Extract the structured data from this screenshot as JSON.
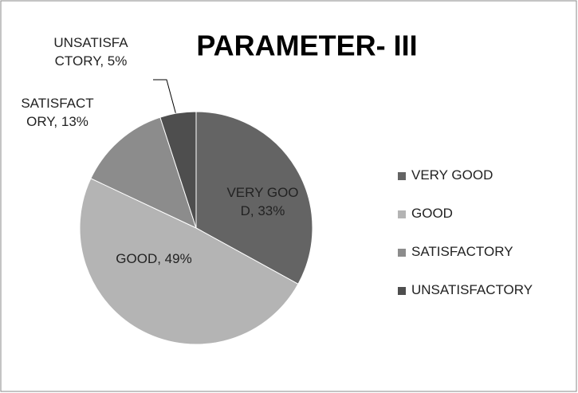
{
  "chart_data": {
    "type": "pie",
    "title": "PARAMETER- III",
    "categories": [
      "VERY GOOD",
      "GOOD",
      "SATISFACTORY",
      "UNSATISFACTORY"
    ],
    "values": [
      33,
      49,
      13,
      5
    ],
    "value_labels": [
      "VERY GOOD, 33%",
      "GOOD, 49%",
      "SATISFACTORY, 13%",
      "UNSATISFACTORY, 5%"
    ],
    "colors": [
      "#646464",
      "#b4b4b4",
      "#8c8c8c",
      "#4e4e4e"
    ],
    "legend": "right"
  }
}
